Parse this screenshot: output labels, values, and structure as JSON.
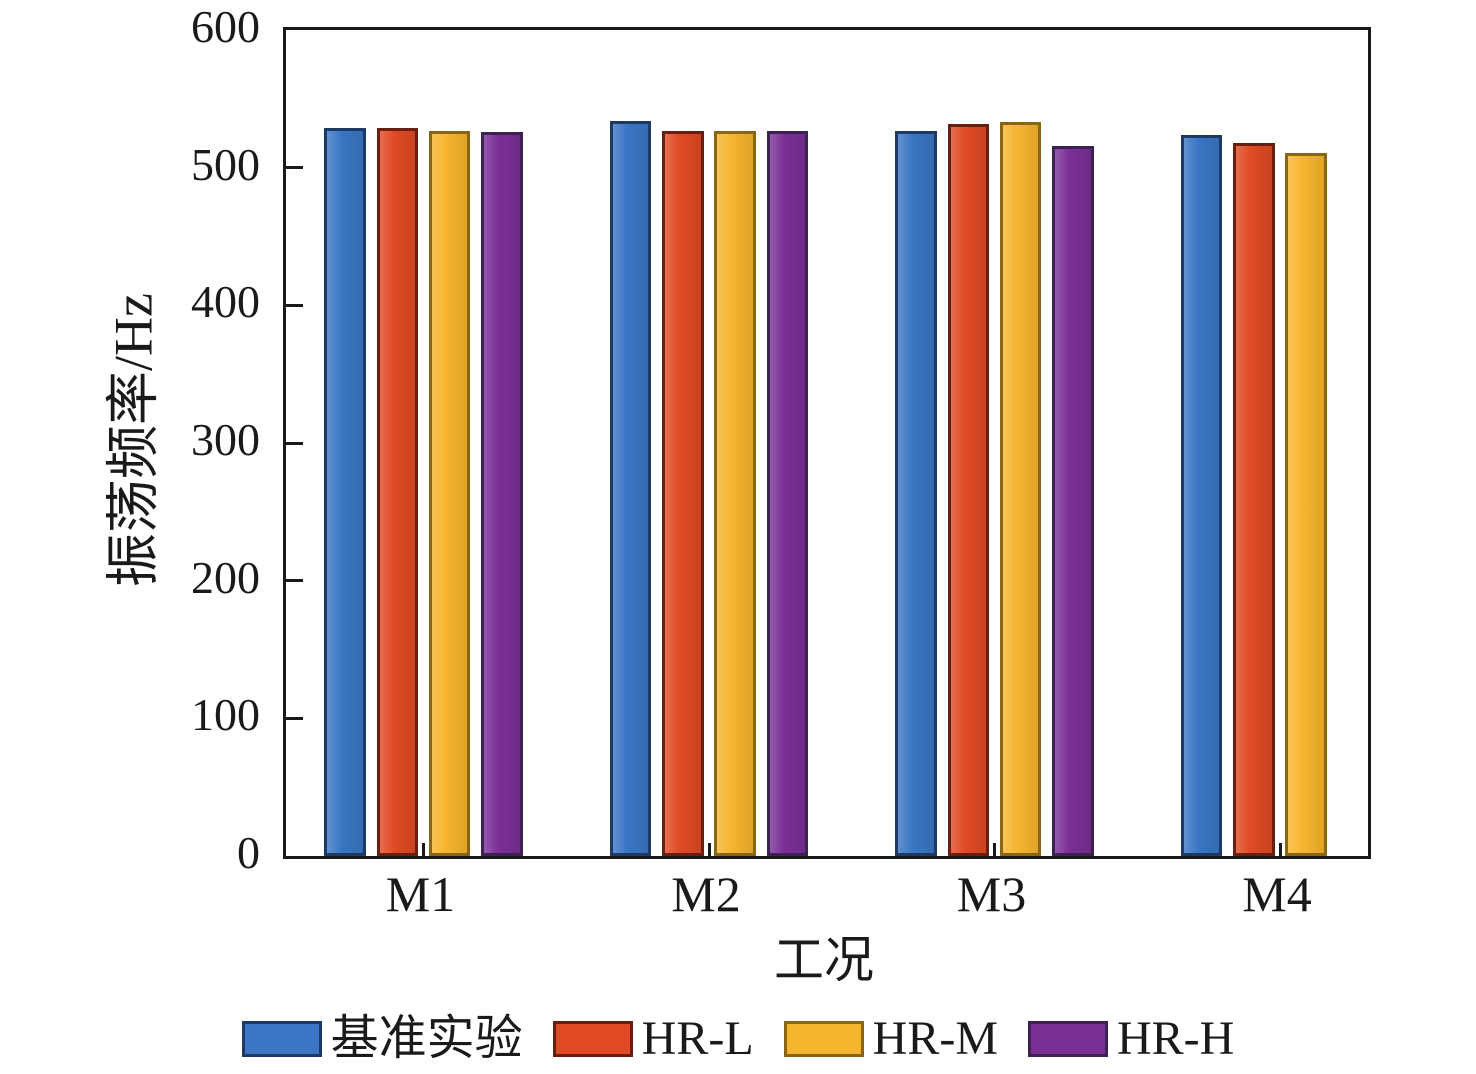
{
  "chart_data": {
    "type": "bar",
    "title": "",
    "xlabel": "工况",
    "ylabel": "振荡频率/Hz",
    "categories": [
      "M1",
      "M2",
      "M3",
      "M4"
    ],
    "series": [
      {
        "name": "基准实验",
        "color": "#3A76C4",
        "edge_color": "#1B3A66",
        "values": [
          529,
          534,
          527,
          524
        ]
      },
      {
        "name": "HR-L",
        "color": "#E04A24",
        "edge_color": "#6B1D10",
        "values": [
          529,
          527,
          532,
          518
        ]
      },
      {
        "name": "HR-M",
        "color": "#F6B52E",
        "edge_color": "#8A6614",
        "values": [
          527,
          527,
          533,
          511
        ]
      },
      {
        "name": "HR-H",
        "color": "#7B2F97",
        "edge_color": "#3C2153",
        "values": [
          526,
          527,
          516,
          null
        ]
      }
    ],
    "ylim": [
      0,
      600
    ],
    "yticks": [
      0,
      100,
      200,
      300,
      400,
      500,
      600
    ],
    "grid": false,
    "legend_position": "bottom",
    "axis_color": "#1a1a1a"
  }
}
